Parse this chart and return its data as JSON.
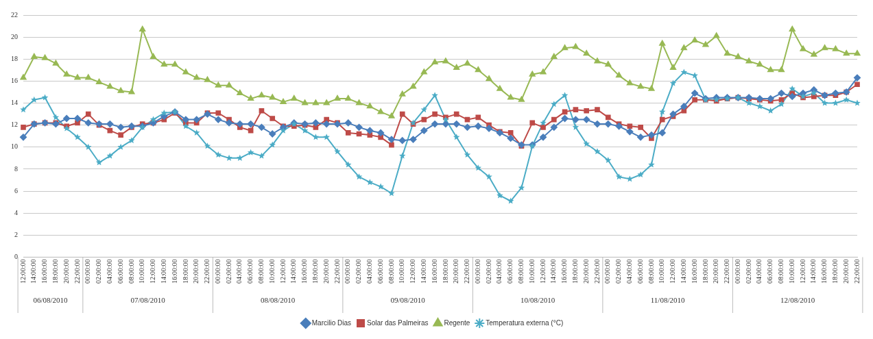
{
  "chart_data": {
    "type": "line",
    "categories": [
      "12:00:00",
      "14:00:00",
      "16:00:00",
      "18:00:00",
      "20:00:00",
      "22:00:00",
      "00:00:00",
      "02:00:00",
      "04:00:00",
      "06:00:00",
      "08:00:00",
      "10:00:00",
      "12:00:00",
      "14:00:00",
      "16:00:00",
      "18:00:00",
      "20:00:00",
      "22:00:00",
      "00:00:00",
      "02:00:00",
      "04:00:00",
      "06:00:00",
      "08:00:00",
      "10:00:00",
      "12:00:00",
      "14:00:00",
      "16:00:00",
      "18:00:00",
      "20:00:00",
      "22:00:00",
      "00:00:00",
      "02:00:00",
      "04:00:00",
      "06:00:00",
      "08:00:00",
      "10:00:00",
      "12:00:00",
      "14:00:00",
      "16:00:00",
      "18:00:00",
      "20:00:00",
      "22:00:00",
      "00:00:00",
      "02:00:00",
      "04:00:00",
      "06:00:00",
      "08:00:00",
      "10:00:00",
      "12:00:00",
      "14:00:00",
      "16:00:00",
      "18:00:00",
      "20:00:00",
      "22:00:00",
      "00:00:00",
      "02:00:00",
      "04:00:00",
      "06:00:00",
      "08:00:00",
      "10:00:00",
      "12:00:00",
      "14:00:00",
      "16:00:00",
      "18:00:00",
      "20:00:00",
      "22:00:00",
      "00:00:00",
      "02:00:00",
      "04:00:00",
      "06:00:00",
      "08:00:00",
      "10:00:00",
      "12:00:00",
      "14:00:00",
      "16:00:00",
      "18:00:00",
      "20:00:00",
      "22:00:00"
    ],
    "series": [
      {
        "name": "Marcilio Dias",
        "color": "#4a7ebb",
        "marker": "diamond",
        "values": [
          10.9,
          12.1,
          12.2,
          12.1,
          12.6,
          12.6,
          12.2,
          12.1,
          12.1,
          11.8,
          11.9,
          11.9,
          12.2,
          12.8,
          13.2,
          12.5,
          12.5,
          13.0,
          12.5,
          12.2,
          12.1,
          12.1,
          11.8,
          11.2,
          11.8,
          12.2,
          12.1,
          12.2,
          12.1,
          12.1,
          12.2,
          11.8,
          11.5,
          11.3,
          10.7,
          10.6,
          10.7,
          11.5,
          12.1,
          12.1,
          12.1,
          11.8,
          11.9,
          11.7,
          11.3,
          10.8,
          10.2,
          10.2,
          10.9,
          11.8,
          12.6,
          12.5,
          12.5,
          12.1,
          12.1,
          11.9,
          11.4,
          10.9,
          11.1,
          11.3,
          13.0,
          13.7,
          14.9,
          14.4,
          14.5,
          14.5,
          14.5,
          14.5,
          14.4,
          14.4,
          14.9,
          14.6,
          14.9,
          15.2,
          14.7,
          14.9,
          15.0,
          16.3
        ]
      },
      {
        "name": "Solar das Palmeiras",
        "color": "#be4b48",
        "marker": "square",
        "values": [
          11.8,
          12.1,
          12.2,
          12.2,
          11.9,
          12.2,
          13.0,
          12.0,
          11.5,
          11.1,
          11.8,
          12.1,
          12.2,
          12.5,
          13.1,
          12.2,
          12.2,
          13.1,
          13.1,
          12.5,
          11.8,
          11.5,
          13.3,
          12.6,
          11.9,
          11.9,
          12.0,
          11.8,
          12.5,
          12.2,
          11.3,
          11.2,
          11.1,
          10.9,
          10.2,
          13.0,
          12.1,
          12.5,
          13.0,
          12.7,
          13.0,
          12.5,
          12.7,
          12.0,
          11.4,
          11.3,
          10.1,
          12.2,
          11.8,
          12.5,
          13.2,
          13.4,
          13.3,
          13.4,
          12.7,
          12.1,
          11.9,
          11.8,
          10.8,
          12.5,
          12.8,
          13.3,
          14.3,
          14.3,
          14.2,
          14.4,
          14.5,
          14.4,
          14.3,
          14.2,
          14.3,
          14.9,
          14.5,
          14.6,
          14.7,
          14.7,
          15.0,
          15.7
        ]
      },
      {
        "name": "Regente",
        "color": "#98b954",
        "marker": "triangle",
        "values": [
          16.3,
          18.2,
          18.1,
          17.6,
          16.6,
          16.3,
          16.3,
          15.9,
          15.5,
          15.1,
          15.0,
          20.7,
          18.2,
          17.5,
          17.5,
          16.8,
          16.3,
          16.1,
          15.6,
          15.6,
          14.9,
          14.4,
          14.7,
          14.5,
          14.1,
          14.4,
          14.0,
          14.0,
          14.0,
          14.4,
          14.4,
          14.0,
          13.7,
          13.2,
          12.8,
          14.8,
          15.5,
          16.8,
          17.7,
          17.8,
          17.2,
          17.6,
          17.0,
          16.2,
          15.3,
          14.5,
          14.3,
          16.6,
          16.8,
          18.2,
          19.0,
          19.1,
          18.5,
          17.8,
          17.5,
          16.5,
          15.8,
          15.5,
          15.3,
          19.4,
          17.2,
          19.0,
          19.7,
          19.3,
          20.1,
          18.5,
          18.2,
          17.8,
          17.5,
          17.0,
          17.0,
          20.7,
          18.9,
          18.4,
          19.0,
          18.9,
          18.5,
          18.5
        ]
      },
      {
        "name": "Temperatura externa (°C)",
        "color": "#4bacc6",
        "marker": "star",
        "values": [
          13.4,
          14.3,
          14.5,
          12.7,
          11.7,
          10.9,
          10.0,
          8.6,
          9.2,
          10.0,
          10.6,
          11.8,
          12.5,
          13.1,
          13.2,
          11.9,
          11.3,
          10.1,
          9.3,
          9.0,
          9.0,
          9.5,
          9.2,
          10.2,
          11.5,
          12.1,
          11.5,
          10.9,
          10.9,
          9.6,
          8.4,
          7.3,
          6.8,
          6.4,
          5.8,
          9.2,
          12.2,
          13.4,
          14.7,
          12.5,
          10.9,
          9.3,
          8.1,
          7.3,
          5.6,
          5.1,
          6.3,
          10.1,
          12.2,
          13.9,
          14.7,
          11.8,
          10.3,
          9.6,
          8.8,
          7.3,
          7.1,
          7.5,
          8.4,
          13.2,
          15.8,
          16.8,
          16.5,
          14.3,
          14.3,
          14.4,
          14.5,
          14.0,
          13.7,
          13.3,
          13.9,
          15.3,
          14.6,
          14.9,
          14.0,
          14.0,
          14.3,
          14.0
        ]
      }
    ],
    "annotations": [
      "06/08/2010",
      "07/08/2010",
      "08/08/2010",
      "09/08/2010",
      "10/08/2010",
      "11/08/2010",
      "12/08/2010"
    ],
    "ylim": [
      0,
      22
    ],
    "yticks": [
      0,
      2,
      4,
      6,
      8,
      10,
      12,
      14,
      16,
      18,
      20,
      22
    ],
    "grid": "y",
    "legend": "bottom",
    "line_style": "solid"
  }
}
